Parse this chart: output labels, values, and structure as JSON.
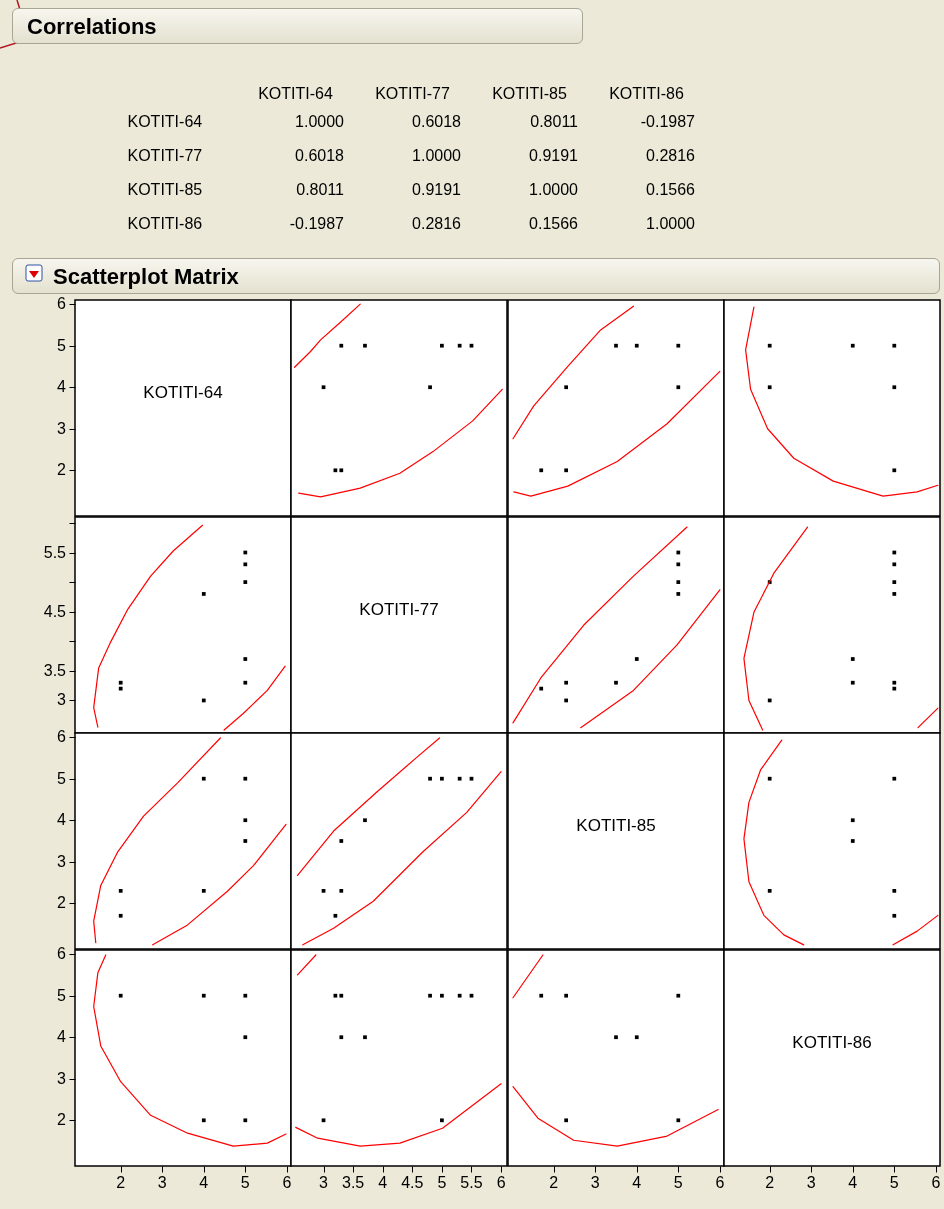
{
  "chart_data": [
    {
      "type": "heatmap",
      "title": "Correlations",
      "categories": [
        "KOTITI-64",
        "KOTITI-77",
        "KOTITI-85",
        "KOTITI-86"
      ],
      "y_categories": [
        "KOTITI-64",
        "KOTITI-77",
        "KOTITI-85",
        "KOTITI-86"
      ],
      "cells": [
        [
          1.0,
          0.6018,
          0.8011,
          -0.1987
        ],
        [
          0.6018,
          1.0,
          0.9191,
          0.2816
        ],
        [
          0.8011,
          0.9191,
          1.0,
          0.1566
        ],
        [
          -0.1987,
          0.2816,
          0.1566,
          1.0
        ]
      ],
      "cell_labels": [
        [
          "1.0000",
          "0.6018",
          "0.8011",
          "-0.1987"
        ],
        [
          "0.6018",
          "1.0000",
          "0.9191",
          "0.2816"
        ],
        [
          "0.8011",
          "0.9191",
          "1.0000",
          "0.1566"
        ],
        [
          "-0.1987",
          "0.2816",
          "0.1566",
          "1.0000"
        ]
      ]
    },
    {
      "type": "scatter",
      "title": "Scatterplot Matrix",
      "annotations": [
        "KOTITI-64"
      ],
      "xlim": [
        0.9,
        6.1
      ],
      "ylim": [
        0.9,
        6.1
      ],
      "yticks": [
        2,
        3,
        4,
        5,
        6
      ],
      "tick_labels": "y"
    },
    {
      "type": "scatter",
      "xlim": [
        2.45,
        6.1
      ],
      "ylim": [
        0.9,
        6.1
      ],
      "tick_labels": false,
      "series": [
        {
          "type": "scatter",
          "marker": "square",
          "color": "#000000",
          "x": [
            3,
            3.3,
            3.7,
            4.8,
            5,
            5.3,
            5.5,
            3.2,
            3.3
          ],
          "values": [
            4,
            5,
            5,
            4,
            5,
            5,
            5,
            2,
            2
          ]
        },
        {
          "type": "line",
          "color": "#ff0000",
          "x": [
            2.51,
            2.78,
            2.95,
            3.29,
            3.62
          ],
          "values": [
            4.48,
            4.86,
            5.14,
            5.57,
            6.0
          ]
        },
        {
          "type": "line",
          "color": "#ff0000",
          "x": [
            2.58,
            2.95,
            3.62,
            4.29,
            4.85,
            5.52,
            6.02
          ],
          "values": [
            1.45,
            1.36,
            1.57,
            1.93,
            2.45,
            3.19,
            3.95
          ]
        }
      ]
    },
    {
      "type": "scatter",
      "xlim": [
        0.9,
        6.1
      ],
      "ylim": [
        0.9,
        6.1
      ],
      "tick_labels": false,
      "series": [
        {
          "type": "scatter",
          "marker": "square",
          "color": "#000000",
          "x": [
            1.7,
            2.3,
            2.3,
            5,
            3.5,
            4,
            5
          ],
          "values": [
            2,
            2,
            4,
            4,
            5,
            5,
            5
          ]
        },
        {
          "type": "line",
          "color": "#ff0000",
          "x": [
            1.02,
            1.52,
            2.34,
            3.13,
            3.92
          ],
          "values": [
            2.76,
            3.55,
            4.5,
            5.38,
            5.95
          ]
        },
        {
          "type": "line",
          "color": "#ff0000",
          "x": [
            1.04,
            1.45,
            2.34,
            3.53,
            4.73,
            6.0
          ],
          "values": [
            1.48,
            1.38,
            1.62,
            2.21,
            3.12,
            4.38
          ]
        }
      ]
    },
    {
      "type": "scatter",
      "xlim": [
        0.9,
        6.1
      ],
      "ylim": [
        0.9,
        6.1
      ],
      "tick_labels": false,
      "series": [
        {
          "type": "scatter",
          "marker": "square",
          "color": "#000000",
          "x": [
            2,
            2,
            4,
            5,
            5,
            5
          ],
          "values": [
            5,
            4,
            5,
            5,
            4,
            2
          ]
        },
        {
          "type": "line",
          "color": "#ff0000",
          "x": [
            1.62,
            1.42,
            1.54,
            1.95,
            2.58,
            3.53,
            4.73,
            5.55,
            6.05
          ],
          "values": [
            5.93,
            4.9,
            3.95,
            3.0,
            2.29,
            1.74,
            1.38,
            1.48,
            1.64
          ]
        }
      ]
    },
    {
      "type": "scatter",
      "xlim": [
        0.9,
        6.1
      ],
      "ylim": [
        2.45,
        6.1
      ],
      "yticks": [
        3,
        3.5,
        {
          "value": 4,
          "label": null
        },
        4.5,
        {
          "value": 5,
          "label": null
        },
        5.5,
        {
          "value": 6,
          "label": null
        }
      ],
      "tick_labels": "y",
      "series": [
        {
          "type": "scatter",
          "marker": "square",
          "color": "#000000",
          "x": [
            2,
            2,
            4,
            4,
            5,
            5,
            5,
            5,
            5
          ],
          "values": [
            3.2,
            3.3,
            3,
            4.8,
            3.3,
            3.7,
            5,
            5.3,
            5.5
          ]
        },
        {
          "type": "line",
          "color": "#ff0000",
          "x": [
            1.45,
            1.35,
            1.47,
            1.76,
            2.17,
            2.72,
            3.27,
            3.97
          ],
          "values": [
            2.55,
            2.88,
            3.55,
            3.99,
            4.54,
            5.1,
            5.53,
            5.96
          ]
        },
        {
          "type": "line",
          "color": "#ff0000",
          "x": [
            4.49,
            4.95,
            5.53,
            5.96
          ],
          "values": [
            2.5,
            2.78,
            3.17,
            3.58
          ]
        }
      ]
    },
    {
      "type": "other",
      "annotations": [
        "KOTITI-77"
      ]
    },
    {
      "type": "scatter",
      "xlim": [
        0.9,
        6.1
      ],
      "ylim": [
        2.45,
        6.1
      ],
      "tick_labels": false,
      "series": [
        {
          "type": "scatter",
          "marker": "square",
          "color": "#000000",
          "x": [
            1.7,
            2.3,
            2.3,
            5,
            3.5,
            4,
            5,
            5,
            5
          ],
          "values": [
            3.2,
            3.3,
            3,
            4.8,
            3.3,
            3.7,
            5,
            5.3,
            5.5
          ]
        },
        {
          "type": "line",
          "color": "#ff0000",
          "x": [
            1.02,
            1.69,
            2.72,
            3.92,
            5.21
          ],
          "values": [
            2.62,
            3.38,
            4.27,
            5.1,
            5.93
          ]
        },
        {
          "type": "line",
          "color": "#ff0000",
          "x": [
            2.65,
            3.92,
            4.97,
            6.0
          ],
          "values": [
            2.54,
            3.17,
            3.94,
            4.87
          ]
        }
      ]
    },
    {
      "type": "scatter",
      "xlim": [
        0.9,
        6.1
      ],
      "ylim": [
        2.45,
        6.1
      ],
      "tick_labels": false,
      "series": [
        {
          "type": "scatter",
          "marker": "square",
          "color": "#000000",
          "x": [
            5,
            5,
            2,
            5,
            4,
            4,
            5,
            2,
            5,
            5
          ],
          "values": [
            3.2,
            3.3,
            3,
            4.8,
            3.3,
            3.7,
            5,
            5,
            5.3,
            5.5
          ]
        },
        {
          "type": "line",
          "color": "#ff0000",
          "x": [
            2.91,
            2.1,
            1.62,
            1.38,
            1.5,
            1.83
          ],
          "values": [
            5.93,
            5.15,
            4.49,
            3.71,
            3.0,
            2.5
          ]
        },
        {
          "type": "line",
          "color": "#ff0000",
          "x": [
            5.57,
            6.05
          ],
          "values": [
            2.54,
            2.87
          ]
        }
      ]
    },
    {
      "type": "scatter",
      "xlim": [
        0.9,
        6.1
      ],
      "ylim": [
        0.9,
        6.1
      ],
      "yticks": [
        2,
        3,
        4,
        5,
        6
      ],
      "tick_labels": "y",
      "series": [
        {
          "type": "scatter",
          "marker": "square",
          "color": "#000000",
          "x": [
            2,
            2,
            4,
            4,
            5,
            5,
            5
          ],
          "values": [
            1.7,
            2.3,
            2.3,
            5,
            3.5,
            4,
            5
          ]
        },
        {
          "type": "line",
          "color": "#ff0000",
          "x": [
            1.4,
            1.35,
            1.52,
            1.93,
            2.55,
            3.37,
            4.4
          ],
          "values": [
            1.05,
            1.57,
            2.43,
            3.24,
            4.1,
            4.9,
            5.98
          ]
        },
        {
          "type": "line",
          "color": "#ff0000",
          "x": [
            2.77,
            3.61,
            4.57,
            5.19,
            5.98
          ],
          "values": [
            1.0,
            1.48,
            2.29,
            2.9,
            3.9
          ]
        }
      ]
    },
    {
      "type": "scatter",
      "xlim": [
        2.45,
        6.1
      ],
      "ylim": [
        0.9,
        6.1
      ],
      "tick_labels": false,
      "series": [
        {
          "type": "scatter",
          "marker": "square",
          "color": "#000000",
          "x": [
            3.2,
            3.3,
            3,
            4.8,
            3.3,
            3.7,
            5,
            5.3,
            5.5
          ],
          "values": [
            1.7,
            2.3,
            2.3,
            5,
            3.5,
            4,
            5,
            5,
            5
          ]
        },
        {
          "type": "line",
          "color": "#ff0000",
          "x": [
            2.56,
            3.17,
            3.91,
            4.58,
            4.96
          ],
          "values": [
            2.67,
            3.74,
            4.69,
            5.52,
            5.98
          ]
        },
        {
          "type": "line",
          "color": "#ff0000",
          "x": [
            2.65,
            3.17,
            3.84,
            4.68,
            5.42,
            6.0
          ],
          "values": [
            1.0,
            1.4,
            2.05,
            3.24,
            4.19,
            5.17
          ]
        }
      ]
    },
    {
      "type": "other",
      "annotations": [
        "KOTITI-85"
      ]
    },
    {
      "type": "scatter",
      "xlim": [
        0.9,
        6.1
      ],
      "ylim": [
        0.9,
        6.1
      ],
      "tick_labels": false,
      "series": [
        {
          "type": "scatter",
          "marker": "square",
          "color": "#000000",
          "x": [
            5,
            5,
            2,
            5,
            4,
            4,
            2
          ],
          "values": [
            1.7,
            2.3,
            2.3,
            5,
            3.5,
            4,
            5
          ]
        },
        {
          "type": "line",
          "color": "#ff0000",
          "x": [
            2.29,
            1.78,
            1.5,
            1.38,
            1.5,
            1.86,
            2.34,
            2.82
          ],
          "values": [
            5.93,
            5.21,
            4.43,
            3.55,
            2.52,
            1.71,
            1.24,
            1.0
          ]
        },
        {
          "type": "line",
          "color": "#ff0000",
          "x": [
            4.97,
            5.55,
            6.05
          ],
          "values": [
            1.0,
            1.33,
            1.71
          ]
        }
      ]
    },
    {
      "type": "scatter",
      "xlim": [
        0.9,
        6.1
      ],
      "ylim": [
        0.9,
        6.1
      ],
      "xticks": [
        2,
        3,
        4,
        5,
        6
      ],
      "yticks": [
        2,
        3,
        4,
        5,
        6
      ],
      "series": [
        {
          "type": "scatter",
          "marker": "square",
          "color": "#000000",
          "x": [
            2,
            4,
            4,
            5,
            5,
            5
          ],
          "values": [
            5,
            2,
            5,
            4,
            5,
            2
          ]
        },
        {
          "type": "line",
          "color": "#ff0000",
          "x": [
            1.64,
            1.45,
            1.35,
            1.52,
            2.0,
            2.72,
            3.61,
            4.71,
            5.53,
            5.98
          ],
          "values": [
            5.98,
            5.55,
            4.74,
            3.79,
            2.93,
            2.12,
            1.69,
            1.38,
            1.45,
            1.67
          ]
        }
      ]
    },
    {
      "type": "scatter",
      "xlim": [
        2.45,
        6.1
      ],
      "ylim": [
        0.9,
        6.1
      ],
      "xticks": [
        3,
        3.5,
        4,
        4.5,
        5,
        5.5,
        6
      ],
      "tick_labels": "x",
      "series": [
        {
          "type": "scatter",
          "marker": "square",
          "color": "#000000",
          "x": [
            3.2,
            3.3,
            3,
            4.8,
            3.3,
            3.7,
            5,
            5,
            5.3,
            5.5
          ],
          "values": [
            5,
            5,
            2,
            5,
            4,
            4,
            5,
            2,
            5,
            5
          ]
        },
        {
          "type": "line",
          "color": "#ff0000",
          "x": [
            2.56,
            2.87
          ],
          "values": [
            5.5,
            5.98
          ]
        },
        {
          "type": "line",
          "color": "#ff0000",
          "x": [
            2.53,
            2.9,
            3.62,
            4.29,
            5.01,
            6.0
          ],
          "values": [
            1.83,
            1.57,
            1.38,
            1.45,
            1.81,
            2.88
          ]
        }
      ]
    },
    {
      "type": "scatter",
      "xlim": [
        0.9,
        6.1
      ],
      "ylim": [
        0.9,
        6.1
      ],
      "xticks": [
        2,
        3,
        4,
        5,
        6
      ],
      "tick_labels": "x",
      "series": [
        {
          "type": "scatter",
          "marker": "square",
          "color": "#000000",
          "x": [
            1.7,
            2.3,
            2.3,
            5,
            3.5,
            4,
            5
          ],
          "values": [
            5,
            5,
            2,
            5,
            4,
            4,
            2
          ]
        },
        {
          "type": "line",
          "color": "#ff0000",
          "x": [
            1.02,
            1.74
          ],
          "values": [
            4.95,
            5.98
          ]
        },
        {
          "type": "line",
          "color": "#ff0000",
          "x": [
            1.02,
            1.62,
            2.48,
            3.53,
            4.73,
            5.96
          ],
          "values": [
            2.81,
            2.05,
            1.52,
            1.38,
            1.62,
            2.26
          ]
        }
      ]
    },
    {
      "type": "scatter",
      "annotations": [
        "KOTITI-86"
      ],
      "xlim": [
        0.9,
        6.1
      ],
      "ylim": [
        0.9,
        6.1
      ],
      "xticks": [
        2,
        3,
        4,
        5,
        6
      ],
      "tick_labels": "x"
    }
  ]
}
